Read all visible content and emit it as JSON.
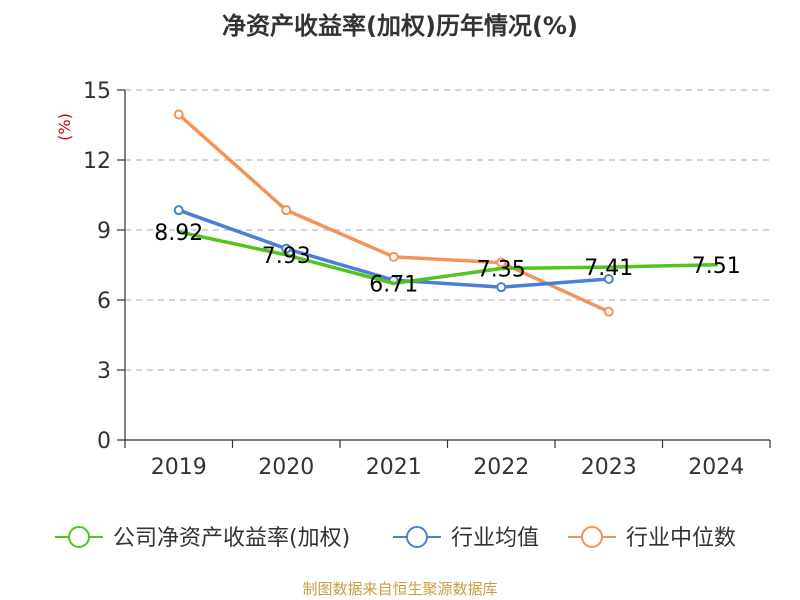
{
  "chart_data": {
    "type": "line",
    "title": "净资产收益率(加权)历年情况(%)",
    "ylabel": "(%)",
    "categories": [
      "2019",
      "2020",
      "2021",
      "2022",
      "2023",
      "2024"
    ],
    "ylim": [
      0,
      15
    ],
    "yticks": [
      0,
      3,
      6,
      9,
      12,
      15
    ],
    "grid": true,
    "legend_position": "bottom",
    "series": [
      {
        "name": "公司净资产收益率(加权)",
        "color": "#52c41a",
        "values": [
          8.92,
          7.93,
          6.71,
          7.35,
          7.41,
          7.51
        ],
        "labels": [
          "8.92",
          "7.93",
          "6.71",
          "7.35",
          "7.41",
          "7.51"
        ]
      },
      {
        "name": "行业均值",
        "color": "#4a7fd4",
        "values": [
          9.85,
          8.2,
          6.85,
          6.55,
          6.9,
          null
        ]
      },
      {
        "name": "行业中位数",
        "color": "#f5925a",
        "values": [
          13.95,
          9.85,
          7.85,
          7.6,
          5.5,
          null
        ]
      }
    ],
    "source": "制图数据来自恒生聚源数据库"
  }
}
